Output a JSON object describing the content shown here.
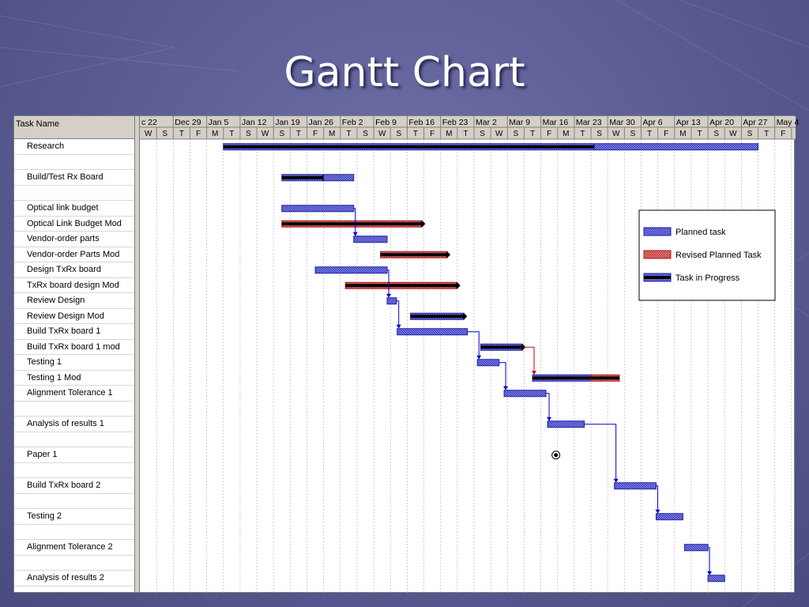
{
  "slide": {
    "title": "Gantt Chart"
  },
  "chart_data": {
    "type": "gantt",
    "columns": {
      "task_name_header": "Task Name"
    },
    "timescale": {
      "weeks": [
        "c 22",
        "Dec 29",
        "Jan 5",
        "Jan 12",
        "Jan 19",
        "Jan 26",
        "Feb 2",
        "Feb 9",
        "Feb 16",
        "Feb 23",
        "Mar 2",
        "Mar 9",
        "Mar 16",
        "Mar 23",
        "Mar 30",
        "Apr 6",
        "Apr 13",
        "Apr 20",
        "Apr 27",
        "May 4"
      ],
      "day_letters": [
        "W",
        "S",
        "T",
        "F",
        "M",
        "T",
        "S",
        "W",
        "S",
        "T",
        "F",
        "M",
        "T",
        "S",
        "W",
        "S",
        "T",
        "F",
        "M",
        "T",
        "S",
        "W",
        "S",
        "T",
        "F",
        "M",
        "T",
        "S",
        "W",
        "S",
        "T",
        "F",
        "M",
        "T",
        "S",
        "W",
        "S",
        "T",
        "F"
      ]
    },
    "tasks": [
      {
        "name": "Research",
        "row": 0,
        "bars": [
          {
            "kind": "progress",
            "start": 2.5,
            "end": 13.6
          },
          {
            "kind": "planned",
            "start": 13.6,
            "end": 18.5
          }
        ]
      },
      {
        "name": "",
        "row": 1,
        "bars": []
      },
      {
        "name": "Build/Test Rx Board",
        "row": 2,
        "bars": [
          {
            "kind": "progress",
            "start": 4.25,
            "end": 5.5,
            "marker": true
          },
          {
            "kind": "planned",
            "start": 5.5,
            "end": 6.4
          }
        ]
      },
      {
        "name": "",
        "row": 3,
        "bars": []
      },
      {
        "name": "Optical link budget",
        "row": 4,
        "bars": [
          {
            "kind": "planned",
            "start": 4.25,
            "end": 6.4
          }
        ]
      },
      {
        "name": "Optical Link Budget Mod",
        "row": 5,
        "bars": [
          {
            "kind": "revised",
            "start": 4.25,
            "end": 8.45,
            "marker": true
          }
        ]
      },
      {
        "name": "Vendor-order parts",
        "row": 6,
        "bars": [
          {
            "kind": "planned",
            "start": 6.4,
            "end": 7.4
          }
        ]
      },
      {
        "name": "Vendor-order Parts Mod",
        "row": 7,
        "bars": [
          {
            "kind": "revised",
            "start": 7.2,
            "end": 9.2,
            "marker": true
          }
        ]
      },
      {
        "name": "Design TxRx board",
        "row": 8,
        "bars": [
          {
            "kind": "planned",
            "start": 5.25,
            "end": 7.4
          }
        ]
      },
      {
        "name": "TxRx board design Mod",
        "row": 9,
        "bars": [
          {
            "kind": "revised",
            "start": 6.15,
            "end": 9.5,
            "marker": true
          }
        ]
      },
      {
        "name": "Review Design",
        "row": 10,
        "bars": [
          {
            "kind": "planned",
            "start": 7.4,
            "end": 7.68
          }
        ]
      },
      {
        "name": "Review Design Mod",
        "row": 11,
        "bars": [
          {
            "kind": "progress",
            "start": 8.1,
            "end": 9.7,
            "marker": true
          }
        ]
      },
      {
        "name": "Build TxRx board 1",
        "row": 12,
        "bars": [
          {
            "kind": "planned",
            "start": 7.7,
            "end": 9.8
          }
        ]
      },
      {
        "name": "Build TxRx board 1 mod",
        "row": 13,
        "bars": [
          {
            "kind": "progress",
            "start": 10.2,
            "end": 11.45,
            "marker": true
          }
        ]
      },
      {
        "name": "Testing 1",
        "row": 14,
        "bars": [
          {
            "kind": "planned",
            "start": 10.1,
            "end": 10.75
          }
        ]
      },
      {
        "name": "Testing 1 Mod",
        "row": 15,
        "bars": [
          {
            "kind": "progress",
            "start": 11.75,
            "end": 13.5
          },
          {
            "kind": "revised",
            "start": 13.5,
            "end": 14.35
          }
        ]
      },
      {
        "name": "Alignment Tolerance 1",
        "row": 16,
        "bars": [
          {
            "kind": "planned",
            "start": 10.9,
            "end": 12.15
          }
        ]
      },
      {
        "name": "",
        "row": 17,
        "bars": []
      },
      {
        "name": "Analysis of results 1",
        "row": 18,
        "bars": [
          {
            "kind": "planned",
            "start": 12.2,
            "end": 13.3
          }
        ]
      },
      {
        "name": "",
        "row": 19,
        "bars": []
      },
      {
        "name": "Paper 1",
        "row": 20,
        "milestone": 12.45,
        "bars": []
      },
      {
        "name": "",
        "row": 21,
        "bars": []
      },
      {
        "name": "Build TxRx board 2",
        "row": 22,
        "bars": [
          {
            "kind": "planned",
            "start": 14.2,
            "end": 15.45
          }
        ]
      },
      {
        "name": "",
        "row": 23,
        "bars": []
      },
      {
        "name": "Testing 2",
        "row": 24,
        "bars": [
          {
            "kind": "planned",
            "start": 15.45,
            "end": 16.25
          }
        ]
      },
      {
        "name": "",
        "row": 25,
        "bars": []
      },
      {
        "name": "Alignment Tolerance 2",
        "row": 26,
        "bars": [
          {
            "kind": "planned",
            "start": 16.3,
            "end": 17.0
          }
        ]
      },
      {
        "name": "",
        "row": 27,
        "bars": []
      },
      {
        "name": "Analysis of results 2",
        "row": 28,
        "bars": [
          {
            "kind": "planned",
            "start": 17.0,
            "end": 17.5
          }
        ]
      }
    ],
    "dependencies": [
      {
        "from_row": 4,
        "to_row": 6,
        "color": "blue"
      },
      {
        "from_row": 8,
        "to_row": 10,
        "color": "blue"
      },
      {
        "from_row": 10,
        "to_row": 12,
        "color": "blue"
      },
      {
        "from_row": 12,
        "to_row": 14,
        "color": "blue"
      },
      {
        "from_row": 14,
        "to_row": 16,
        "color": "blue"
      },
      {
        "from_row": 16,
        "to_row": 18,
        "color": "blue"
      },
      {
        "from_row": 18,
        "to_row": 22,
        "color": "blue"
      },
      {
        "from_row": 22,
        "to_row": 24,
        "color": "blue"
      },
      {
        "from_row": 26,
        "to_row": 28,
        "color": "blue"
      },
      {
        "from_row": 13,
        "to_row": 15,
        "color": "red"
      }
    ],
    "legend": {
      "position": "right",
      "items": [
        {
          "label": "Planned task",
          "kind": "planned"
        },
        {
          "label": "Revised Planned Task",
          "kind": "revised"
        },
        {
          "label": "Task in Progress",
          "kind": "progress"
        }
      ]
    },
    "colors": {
      "planned": "#7b7fe0",
      "planned_border": "#1c1ca8",
      "revised": "#e07878",
      "revised_border": "#b01818",
      "progress": "#000000",
      "dep_blue": "#0000cc",
      "dep_red": "#cc0000"
    }
  }
}
